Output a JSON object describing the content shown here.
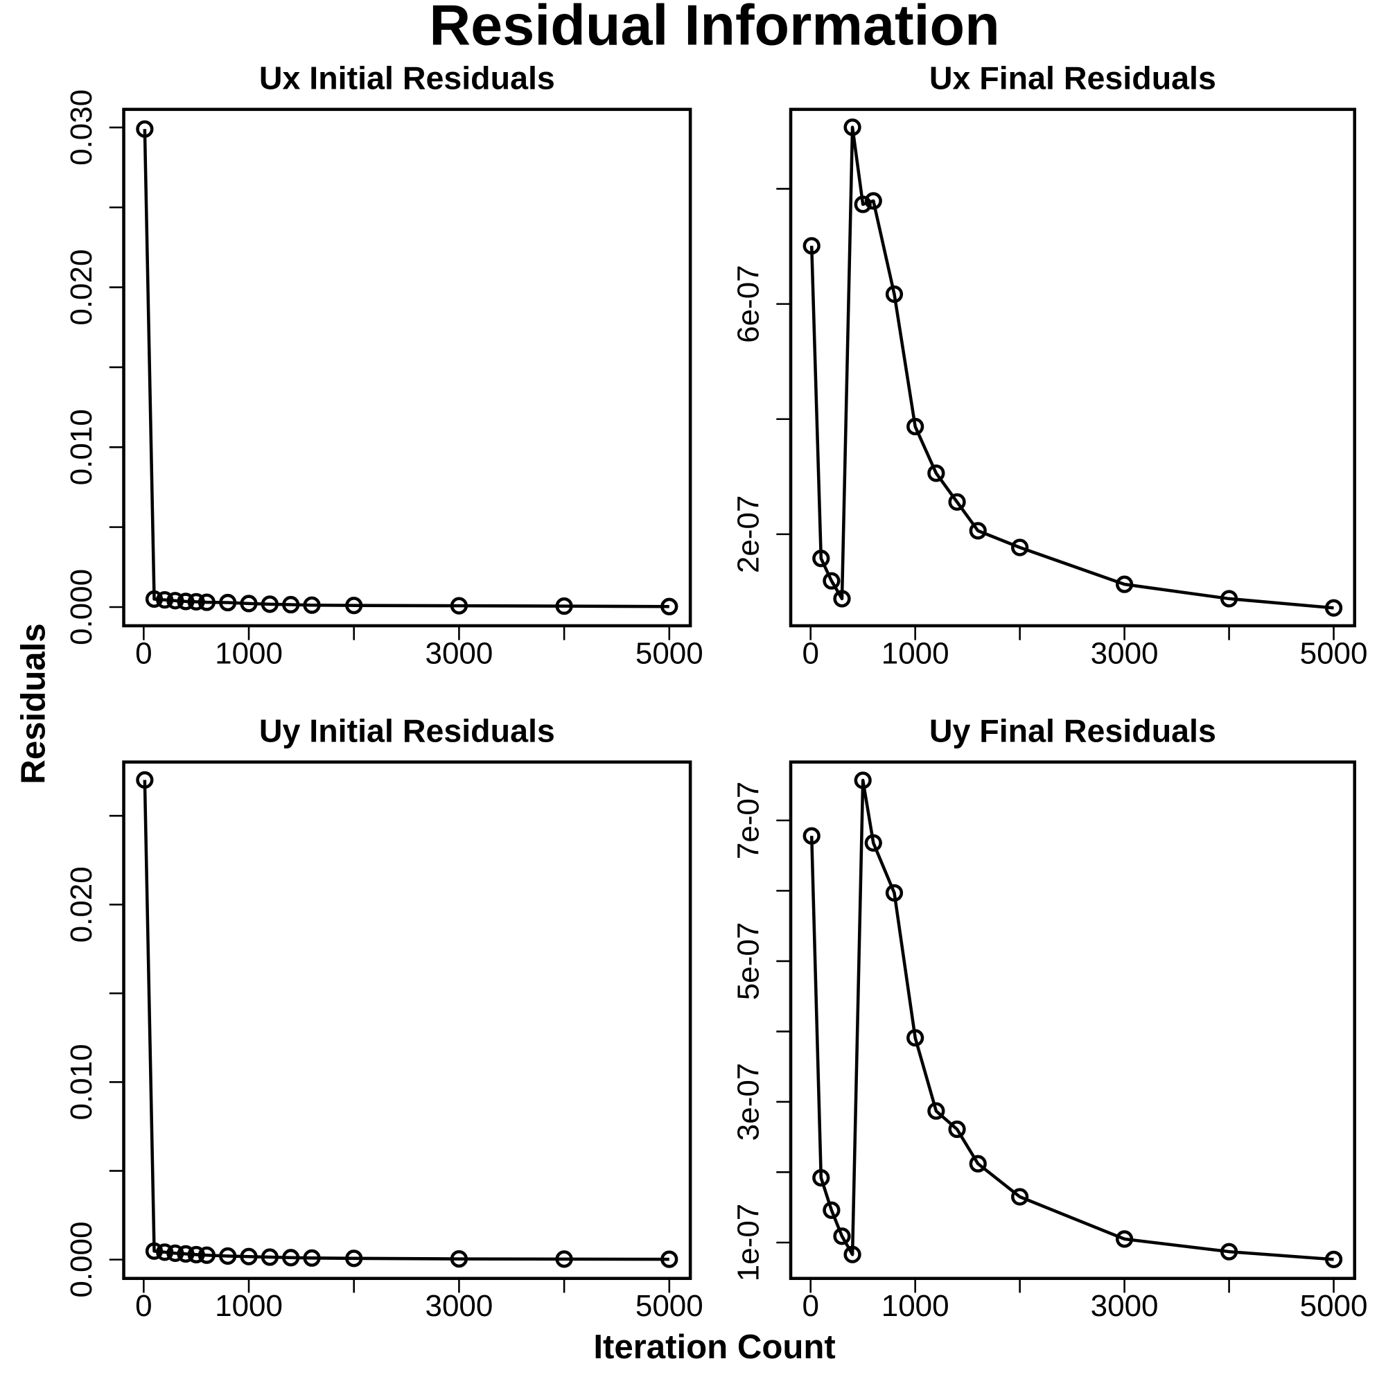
{
  "title": "Residual Information",
  "x_label": "Iteration Count",
  "y_label": "Residuals",
  "chart_data": [
    {
      "type": "line",
      "title": "Ux Initial Residuals",
      "color": "#000000",
      "marker": "circle",
      "x": [
        10,
        100,
        200,
        300,
        400,
        500,
        600,
        800,
        1000,
        1200,
        1400,
        1600,
        2000,
        3000,
        4000,
        5000
      ],
      "values": [
        0.0299,
        0.0005,
        0.00045,
        0.0004,
        0.00035,
        0.00033,
        0.0003,
        0.00028,
        0.00022,
        0.00018,
        0.00015,
        0.00012,
        0.0001,
        8e-05,
        6e-05,
        3e-05
      ],
      "xlim": [
        -190,
        5200
      ],
      "xticks": [
        0,
        1000,
        3000,
        5000
      ],
      "xticks_minor": [
        2000,
        4000
      ],
      "ylim": [
        -0.00117,
        0.03113
      ],
      "yticks": [
        {
          "value": 0,
          "label": "0.000"
        },
        {
          "value": 0.01,
          "label": "0.010"
        },
        {
          "value": 0.02,
          "label": "0.020"
        },
        {
          "value": 0.03,
          "label": "0.030"
        }
      ],
      "yticks_minor": [
        0.005,
        0.015,
        0.025
      ]
    },
    {
      "type": "line",
      "title": "Ux Final Residuals",
      "color": "#000000",
      "marker": "circle",
      "x": [
        10,
        100,
        200,
        300,
        400,
        500,
        600,
        800,
        1000,
        1200,
        1400,
        1600,
        2000,
        3000,
        4000,
        5000
      ],
      "values": [
        7.01e-07,
        1.58e-07,
        1.19e-07,
        8.8e-08,
        9.07e-07,
        7.73e-07,
        7.79e-07,
        6.17e-07,
        3.87e-07,
        3.06e-07,
        2.56e-07,
        2.06e-07,
        1.77e-07,
        1.13e-07,
        8.8e-08,
        7.2e-08
      ],
      "xlim": [
        -190,
        5200
      ],
      "xticks": [
        0,
        1000,
        3000,
        5000
      ],
      "xticks_minor": [
        2000,
        4000
      ],
      "ylim": [
        4.1e-08,
        9.38e-07
      ],
      "yticks": [
        {
          "value": 2e-07,
          "label": "2e-07"
        },
        {
          "value": 6e-07,
          "label": "6e-07"
        }
      ],
      "yticks_minor": [
        4e-07,
        8e-07
      ]
    },
    {
      "type": "line",
      "title": "Uy Initial Residuals",
      "color": "#000000",
      "marker": "circle",
      "x": [
        10,
        100,
        200,
        300,
        400,
        500,
        600,
        800,
        1000,
        1200,
        1400,
        1600,
        2000,
        3000,
        4000,
        5000
      ],
      "values": [
        0.02702,
        0.00048,
        0.00042,
        0.00036,
        0.00032,
        0.00028,
        0.00025,
        0.0002,
        0.00017,
        0.00014,
        0.00011,
        9e-05,
        7e-05,
        4e-05,
        3e-05,
        2e-05
      ],
      "xlim": [
        -190,
        5200
      ],
      "xticks": [
        0,
        1000,
        3000,
        5000
      ],
      "xticks_minor": [
        2000,
        4000
      ],
      "ylim": [
        -0.00106,
        0.02803
      ],
      "yticks": [
        {
          "value": 0,
          "label": "0.000"
        },
        {
          "value": 0.01,
          "label": "0.010"
        },
        {
          "value": 0.02,
          "label": "0.020"
        }
      ],
      "yticks_minor": [
        0.005,
        0.015,
        0.025
      ]
    },
    {
      "type": "line",
      "title": "Uy Final Residuals",
      "color": "#000000",
      "marker": "circle",
      "x": [
        10,
        100,
        200,
        300,
        400,
        500,
        600,
        800,
        1000,
        1200,
        1400,
        1600,
        2000,
        3000,
        4000,
        5000
      ],
      "values": [
        6.78e-07,
        1.92e-07,
        1.46e-07,
        1.09e-07,
        8.3e-08,
        7.57e-07,
        6.68e-07,
        5.97e-07,
        3.91e-07,
        2.87e-07,
        2.61e-07,
        2.12e-07,
        1.65e-07,
        1.05e-07,
        8.7e-08,
        7.6e-08
      ],
      "xlim": [
        -190,
        5200
      ],
      "xticks": [
        0,
        1000,
        3000,
        5000
      ],
      "xticks_minor": [
        2000,
        4000
      ],
      "ylim": [
        4.9e-08,
        7.83e-07
      ],
      "yticks": [
        {
          "value": 1e-07,
          "label": "1e-07"
        },
        {
          "value": 3e-07,
          "label": "3e-07"
        },
        {
          "value": 5e-07,
          "label": "5e-07"
        },
        {
          "value": 7e-07,
          "label": "7e-07"
        }
      ],
      "yticks_minor": [
        2e-07,
        4e-07,
        6e-07
      ]
    }
  ]
}
